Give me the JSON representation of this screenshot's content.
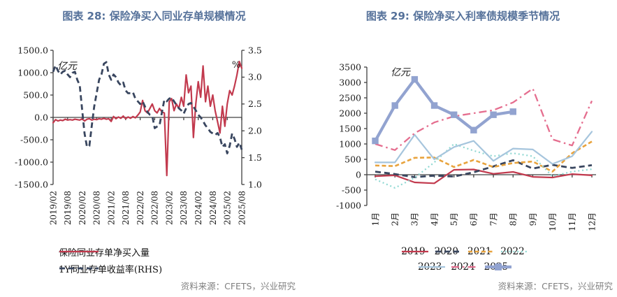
{
  "page": {
    "background": "#ffffff",
    "title_color": "#55719a",
    "source_color": "#808080"
  },
  "chart_data": [
    {
      "type": "line",
      "title": "图表 28: 保险净买入同业存单规模情况",
      "source": "资料来源：CFETS，兴业研究",
      "unit_left": "亿元",
      "unit_right": "%",
      "x_start": "2019/02",
      "x_freq": "monthly",
      "x_tick_labels": [
        "2019/02",
        "2019/08",
        "2020/02",
        "2020/08",
        "2021/02",
        "2021/08",
        "2022/02",
        "2022/08",
        "2023/02",
        "2023/08",
        "2024/02",
        "2024/08",
        "2025/02",
        "2025/08"
      ],
      "left_axis": {
        "min": -1500,
        "max": 1500,
        "step": 500,
        "decimals": 1
      },
      "right_axis": {
        "min": 1.0,
        "max": 3.5,
        "step": 0.5,
        "decimals": 1
      },
      "grid": false,
      "legend_position": "bottom-left",
      "series": [
        {
          "name": "保险同业存单净买入量",
          "axis": "left",
          "style": "solid",
          "color": "#c23a4e",
          "values": [
            -120,
            -50,
            -80,
            -60,
            -70,
            -40,
            -60,
            -50,
            -60,
            -40,
            -50,
            -60,
            -30,
            -80,
            -40,
            -30,
            -60,
            -40,
            -50,
            -30,
            -40,
            -20,
            -40,
            -30,
            -90,
            20,
            -30,
            10,
            -20,
            30,
            -30,
            10,
            -20,
            20,
            -10,
            50,
            120,
            380,
            150,
            100,
            200,
            300,
            150,
            100,
            200,
            120,
            100,
            -1300,
            350,
            420,
            150,
            300,
            200,
            450,
            250,
            950,
            550,
            700,
            -450,
            300,
            800,
            450,
            1150,
            350,
            700,
            250,
            500,
            150,
            -100,
            -350,
            250,
            -200,
            300,
            600,
            500,
            700,
            950,
            1250,
            1100
          ]
        },
        {
          "name": "1Y同业存单收益率(RHS)",
          "axis": "right",
          "style": "dash-long",
          "color": "#39465f",
          "values": [
            3.1,
            3.22,
            3.12,
            3.05,
            3.1,
            3.12,
            3.05,
            3.0,
            3.08,
            3.1,
            2.95,
            2.85,
            2.4,
            1.95,
            1.7,
            1.72,
            2.1,
            2.45,
            2.7,
            2.95,
            3.05,
            3.25,
            3.28,
            3.05,
            2.95,
            3.05,
            3.0,
            2.9,
            2.85,
            2.9,
            2.75,
            2.7,
            2.7,
            2.72,
            2.6,
            2.55,
            2.5,
            2.55,
            2.45,
            2.35,
            2.3,
            2.28,
            2.05,
            2.08,
            2.1,
            2.35,
            2.58,
            2.55,
            2.6,
            2.62,
            2.55,
            2.48,
            2.42,
            2.38,
            2.32,
            2.42,
            2.5,
            2.52,
            2.45,
            2.38,
            2.3,
            2.25,
            2.18,
            2.1,
            2.05,
            1.98,
            1.95,
            1.92,
            1.96,
            1.88,
            1.7,
            1.75,
            1.58,
            1.72,
            1.95,
            1.85,
            1.7,
            1.78,
            1.65
          ]
        }
      ]
    },
    {
      "type": "line",
      "title": "图表 29: 保险净买入利率债规模季节情况",
      "source": "资料来源：CFETS，兴业研究",
      "unit_left": "亿元",
      "categories": [
        "1月",
        "2月",
        "3月",
        "4月",
        "5月",
        "6月",
        "7月",
        "8月",
        "9月",
        "10月",
        "11月",
        "12月"
      ],
      "y_axis": {
        "min": -1000,
        "max": 3500,
        "step": 500,
        "decimals": 0
      },
      "grid": false,
      "legend_position": "bottom-center",
      "series": [
        {
          "name": "2019",
          "style": "solid",
          "color": "#c23a4e",
          "values": [
            -50,
            -20,
            -250,
            -280,
            160,
            170,
            30,
            90,
            -70,
            -90,
            20,
            -20
          ]
        },
        {
          "name": "2020",
          "style": "dash-long",
          "color": "#39465f",
          "values": [
            100,
            20,
            -80,
            -30,
            -60,
            80,
            270,
            470,
            200,
            320,
            220,
            310
          ]
        },
        {
          "name": "2021",
          "style": "dash-short",
          "color": "#e8a33d",
          "values": [
            300,
            280,
            550,
            560,
            250,
            480,
            250,
            380,
            430,
            100,
            700,
            1080
          ]
        },
        {
          "name": "2022",
          "style": "dotted",
          "color": "#8fd8d2",
          "values": [
            -150,
            -430,
            -100,
            400,
            1000,
            780,
            600,
            700,
            600,
            -50,
            100,
            180
          ]
        },
        {
          "name": "2023",
          "style": "solid",
          "color": "#a6c5dd",
          "values": [
            400,
            400,
            1300,
            500,
            900,
            1100,
            450,
            850,
            820,
            350,
            600,
            1400
          ]
        },
        {
          "name": "2024",
          "style": "dash-dot",
          "color": "#e56e8f",
          "values": [
            1000,
            800,
            1350,
            1700,
            1900,
            2000,
            2100,
            2350,
            2800,
            1150,
            950,
            2400
          ]
        },
        {
          "name": "2025",
          "style": "solid-marker",
          "color": "#92a3d0",
          "values": [
            1100,
            2250,
            3100,
            2250,
            1950,
            1450,
            1950,
            2050
          ]
        }
      ]
    }
  ]
}
